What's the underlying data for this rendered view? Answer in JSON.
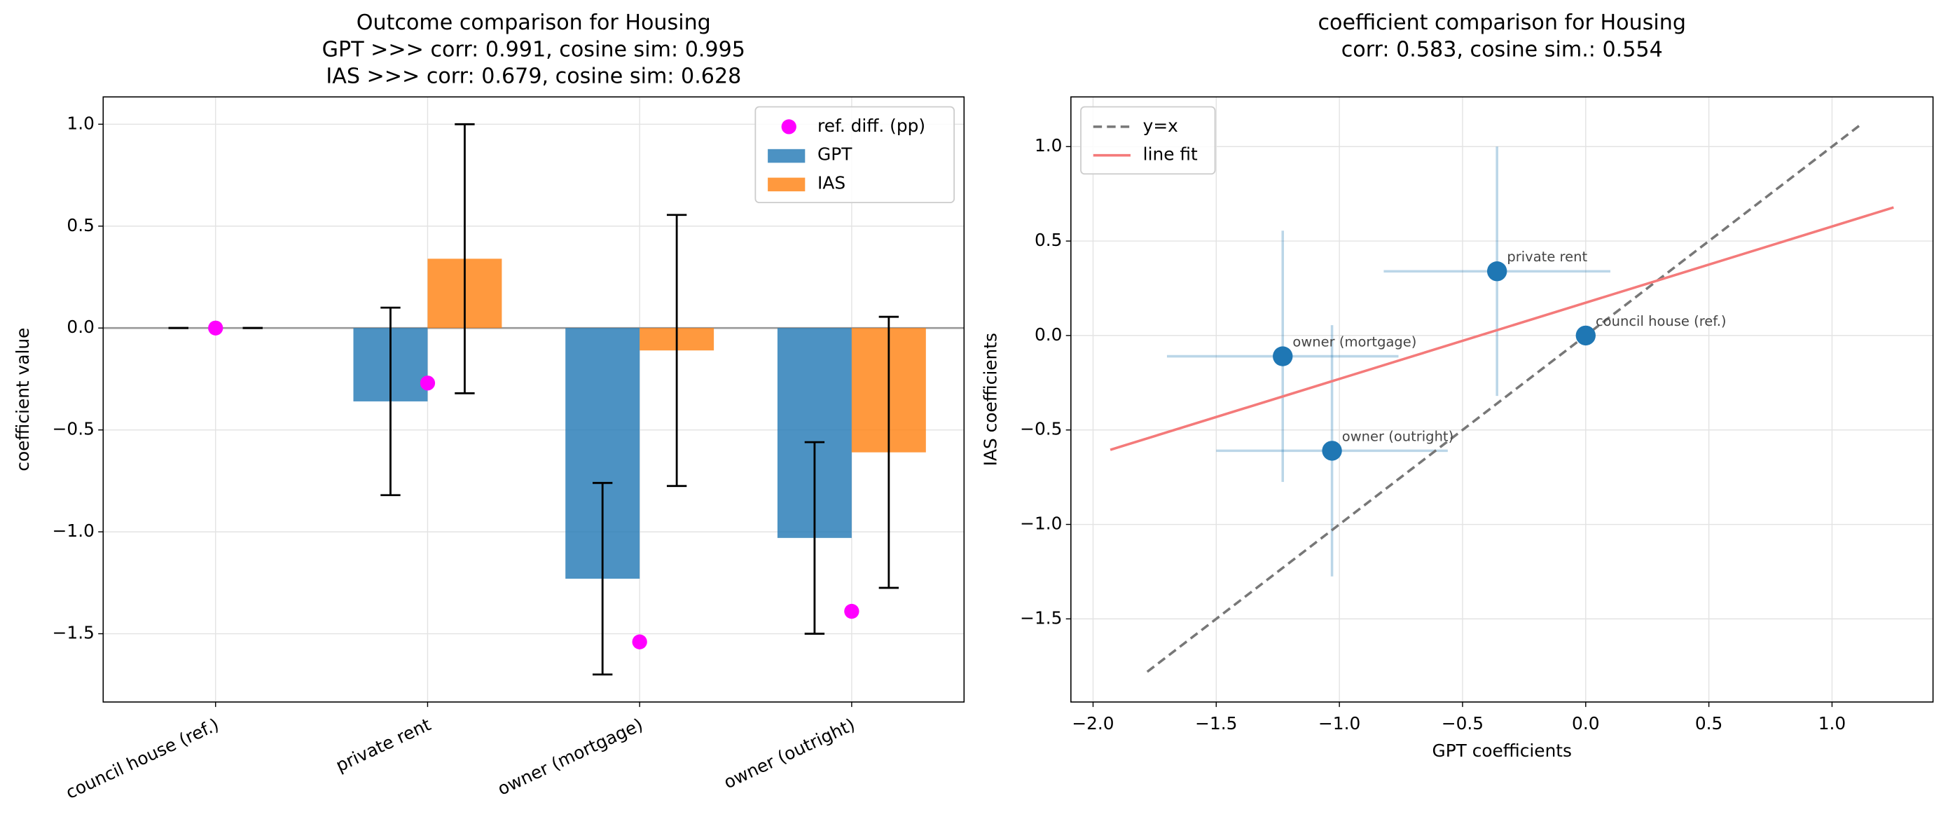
{
  "chart_data": [
    {
      "type": "bar",
      "title": [
        "Outcome comparison for Housing",
        "GPT >>> corr: 0.991,  cosine sim: 0.995",
        "IAS >>> corr: 0.679,  cosine sim: 0.628"
      ],
      "ylabel": "coefficient value",
      "categories": [
        "council house (ref.)",
        "private rent",
        "owner (mortgage)",
        "owner (outright)"
      ],
      "series": [
        {
          "name": "GPT",
          "color": "#1f77b4",
          "opacity": 0.8,
          "values": [
            0,
            -0.36,
            -1.23,
            -1.03
          ],
          "errors": [
            0,
            0.46,
            0.47,
            0.47
          ]
        },
        {
          "name": "IAS",
          "color": "#ff7f0e",
          "opacity": 0.8,
          "values": [
            0,
            0.34,
            -0.11,
            -0.61
          ],
          "errors": [
            0,
            0.66,
            0.665,
            0.665
          ]
        }
      ],
      "points": {
        "name": "ref. diff. (pp)",
        "color": "#ff00ff",
        "values": [
          0,
          -0.27,
          -1.54,
          -1.39
        ]
      },
      "ylim": [
        -1.835,
        1.134
      ],
      "yticks": [
        {
          "value": -1.5,
          "label": "−1.5"
        },
        {
          "value": -1.0,
          "label": "−1.0"
        },
        {
          "value": -0.5,
          "label": "−0.5"
        },
        {
          "value": 0,
          "label": "0.0"
        },
        0.5,
        {
          "value": 1.0,
          "label": "1.0"
        }
      ],
      "grid": true,
      "legend": "upper right"
    },
    {
      "type": "scatter",
      "title": [
        "coefficient comparison for Housing",
        "corr: 0.583, cosine sim.: 0.554"
      ],
      "xlabel": "GPT coefficients",
      "ylabel": "IAS coefficients",
      "x": [
        0,
        -0.36,
        -1.23,
        -1.03
      ],
      "y": [
        0,
        0.34,
        -0.11,
        -0.61
      ],
      "xerr": [
        0,
        0.46,
        0.47,
        0.47
      ],
      "yerr": [
        0,
        0.66,
        0.665,
        0.665
      ],
      "labels": [
        "council house (ref.)",
        "private rent",
        "owner (mortgage)",
        "owner (outright)"
      ],
      "color": "#1f77b4",
      "lines": [
        {
          "name": "y=x",
          "color": "#777777",
          "dashed": true,
          "x": [
            -1.78,
            1.11
          ],
          "y": [
            -1.78,
            1.11
          ]
        },
        {
          "name": "line fit",
          "color": "#f47a7a",
          "dashed": false,
          "x": [
            -1.93,
            1.25
          ],
          "y": [
            -0.605,
            0.678
          ]
        }
      ],
      "xlim": [
        -2.09,
        1.41
      ],
      "ylim": [
        -1.94,
        1.263
      ],
      "xticks": [
        {
          "value": -2.0,
          "label": "−2.0"
        },
        {
          "value": -1.5,
          "label": "−1.5"
        },
        {
          "value": -1.0,
          "label": "−1.0"
        },
        {
          "value": -0.5,
          "label": "−0.5"
        },
        {
          "value": 0,
          "label": "0.0"
        },
        0.5,
        {
          "value": 1.0,
          "label": "1.0"
        }
      ],
      "yticks": [
        {
          "value": -1.5,
          "label": "−1.5"
        },
        {
          "value": -1.0,
          "label": "−1.0"
        },
        {
          "value": -0.5,
          "label": "−0.5"
        },
        {
          "value": 0,
          "label": "0.0"
        },
        0.5,
        {
          "value": 1.0,
          "label": "1.0"
        }
      ],
      "grid": true,
      "legend": "upper left"
    }
  ]
}
